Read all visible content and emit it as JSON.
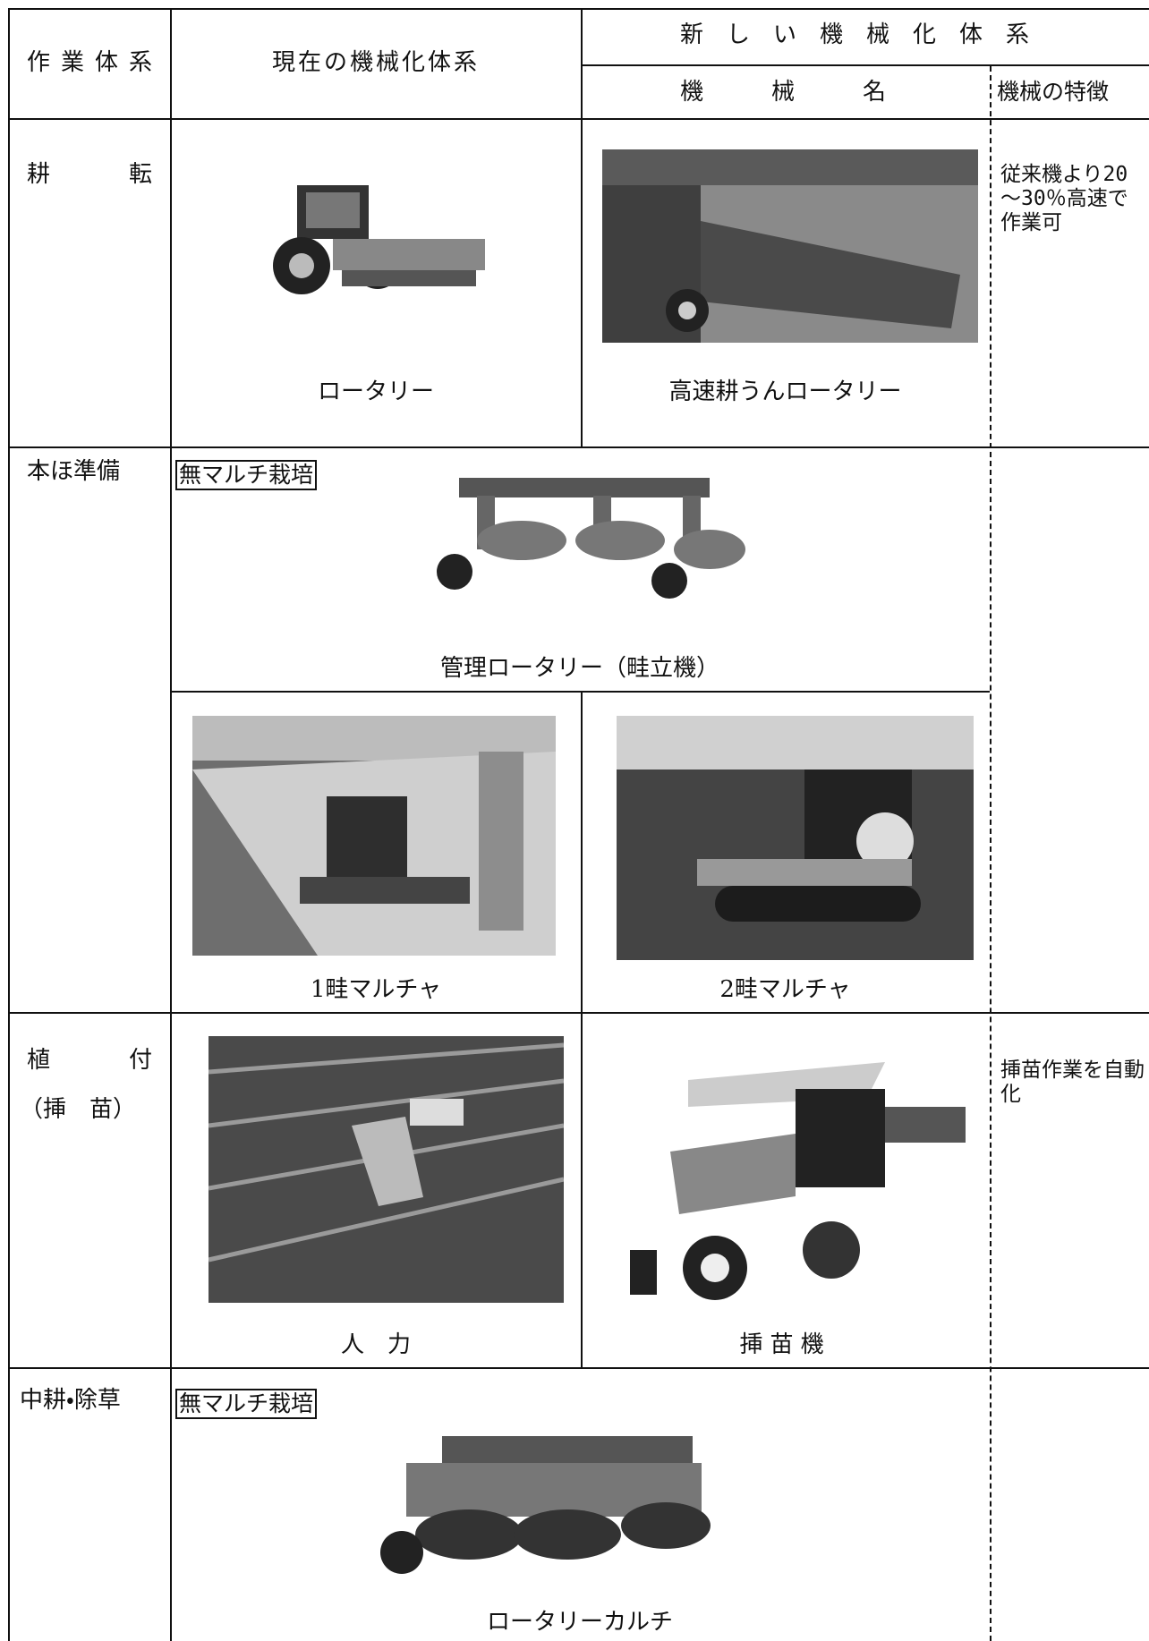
{
  "table": {
    "header": {
      "work": "作業体系",
      "current": "現在の機械化体系",
      "new": "新しい機械化体系",
      "machine_name": "機械名",
      "feature": "機械の特徴"
    },
    "rows": [
      {
        "work": "耕転",
        "current": "ロータリー",
        "new": "高速耕うんロータリー",
        "feature": "従来機より20～30％高速で作業可"
      },
      {
        "work": "本ほ準備",
        "tag": "無マルチ栽培",
        "shared": "管理ロータリー（畦立機）",
        "current": "1畦マルチャ",
        "new": "2畦マルチャ"
      },
      {
        "work": "植付",
        "work_sub": "（挿　苗）",
        "current": "人　力",
        "new": "挿苗機",
        "feature": "挿苗作業を自動化"
      },
      {
        "work": "中耕・除草",
        "tag": "無マルチ栽培",
        "shared": "ロータリーカルチ"
      }
    ]
  }
}
